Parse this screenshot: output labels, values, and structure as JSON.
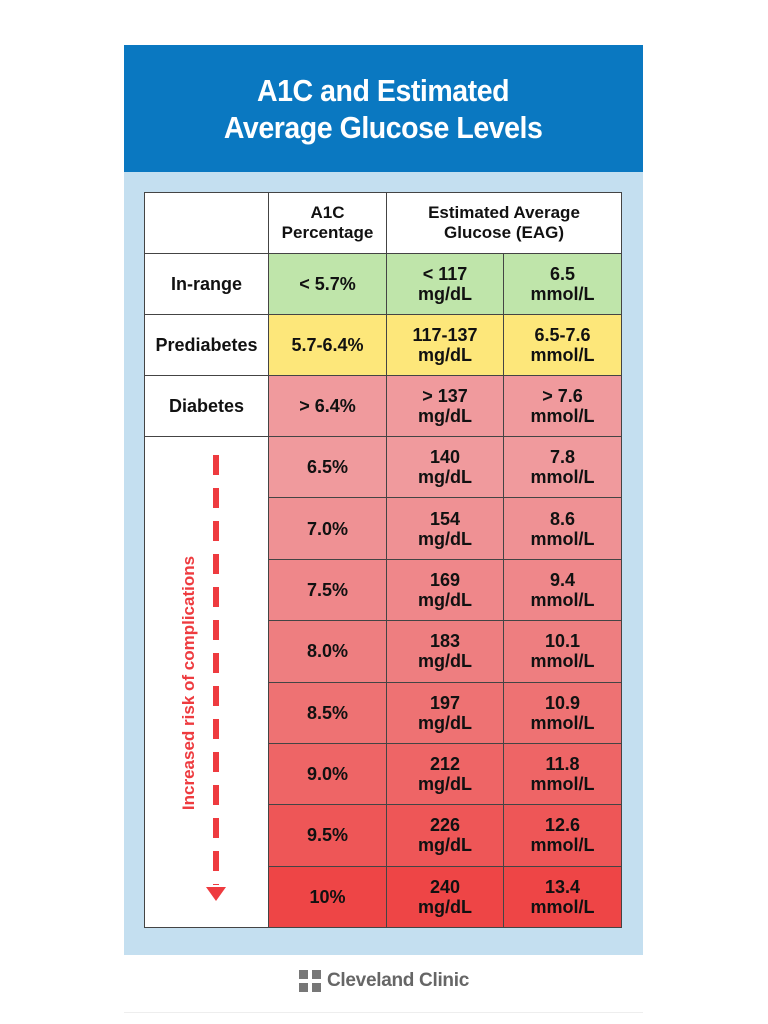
{
  "chart_data": {
    "type": "table",
    "title_line1": "A1C and Estimated",
    "title_line2": "Average Glucose Levels",
    "headers": {
      "a1c_line1": "A1C",
      "a1c_line2": "Percentage",
      "eag_line1": "Estimated Average",
      "eag_line2": "Glucose (EAG)"
    },
    "category_rows": [
      {
        "label": "In-range",
        "a1c": "< 5.7%",
        "mgdl": "< 117",
        "mgdl_unit": "mg/dL",
        "mmol": "6.5",
        "mmol_unit": "mmol/L",
        "color": "#bfe5aa"
      },
      {
        "label": "Prediabetes",
        "a1c": "5.7-6.4%",
        "mgdl": "117-137",
        "mgdl_unit": "mg/dL",
        "mmol": "6.5-7.6",
        "mmol_unit": "mmol/L",
        "color": "#fde77a"
      },
      {
        "label": "Diabetes",
        "a1c": "> 6.4%",
        "mgdl": "> 137",
        "mgdl_unit": "mg/dL",
        "mmol": "> 7.6",
        "mmol_unit": "mmol/L",
        "color": "#f09a9d"
      }
    ],
    "risk_label": "Increased risk of complications",
    "risk_rows": [
      {
        "a1c": "6.5%",
        "mgdl": "140",
        "mgdl_unit": "mg/dL",
        "mmol": "7.8",
        "mmol_unit": "mmol/L",
        "color": "#f09a9d"
      },
      {
        "a1c": "7.0%",
        "mgdl": "154",
        "mgdl_unit": "mg/dL",
        "mmol": "8.6",
        "mmol_unit": "mmol/L",
        "color": "#ef9194"
      },
      {
        "a1c": "7.5%",
        "mgdl": "169",
        "mgdl_unit": "mg/dL",
        "mmol": "9.4",
        "mmol_unit": "mmol/L",
        "color": "#ef878a"
      },
      {
        "a1c": "8.0%",
        "mgdl": "183",
        "mgdl_unit": "mg/dL",
        "mmol": "10.1",
        "mmol_unit": "mmol/L",
        "color": "#ee7e80"
      },
      {
        "a1c": "8.5%",
        "mgdl": "197",
        "mgdl_unit": "mg/dL",
        "mmol": "10.9",
        "mmol_unit": "mmol/L",
        "color": "#ee7273"
      },
      {
        "a1c": "9.0%",
        "mgdl": "212",
        "mgdl_unit": "mg/dL",
        "mmol": "11.8",
        "mmol_unit": "mmol/L",
        "color": "#ee6566"
      },
      {
        "a1c": "9.5%",
        "mgdl": "226",
        "mgdl_unit": "mg/dL",
        "mmol": "12.6",
        "mmol_unit": "mmol/L",
        "color": "#ee5657"
      },
      {
        "a1c": "10%",
        "mgdl": "240",
        "mgdl_unit": "mg/dL",
        "mmol": "13.4",
        "mmol_unit": "mmol/L",
        "color": "#ee4546"
      }
    ]
  },
  "colors": {
    "header_blue": "#0a78c1",
    "panel_blue": "#c4dff0",
    "risk_red": "#ee3b3f"
  },
  "footer": {
    "logo_text": "Cleveland Clinic",
    "logo_icon": "cleveland-clinic-cross-icon"
  }
}
